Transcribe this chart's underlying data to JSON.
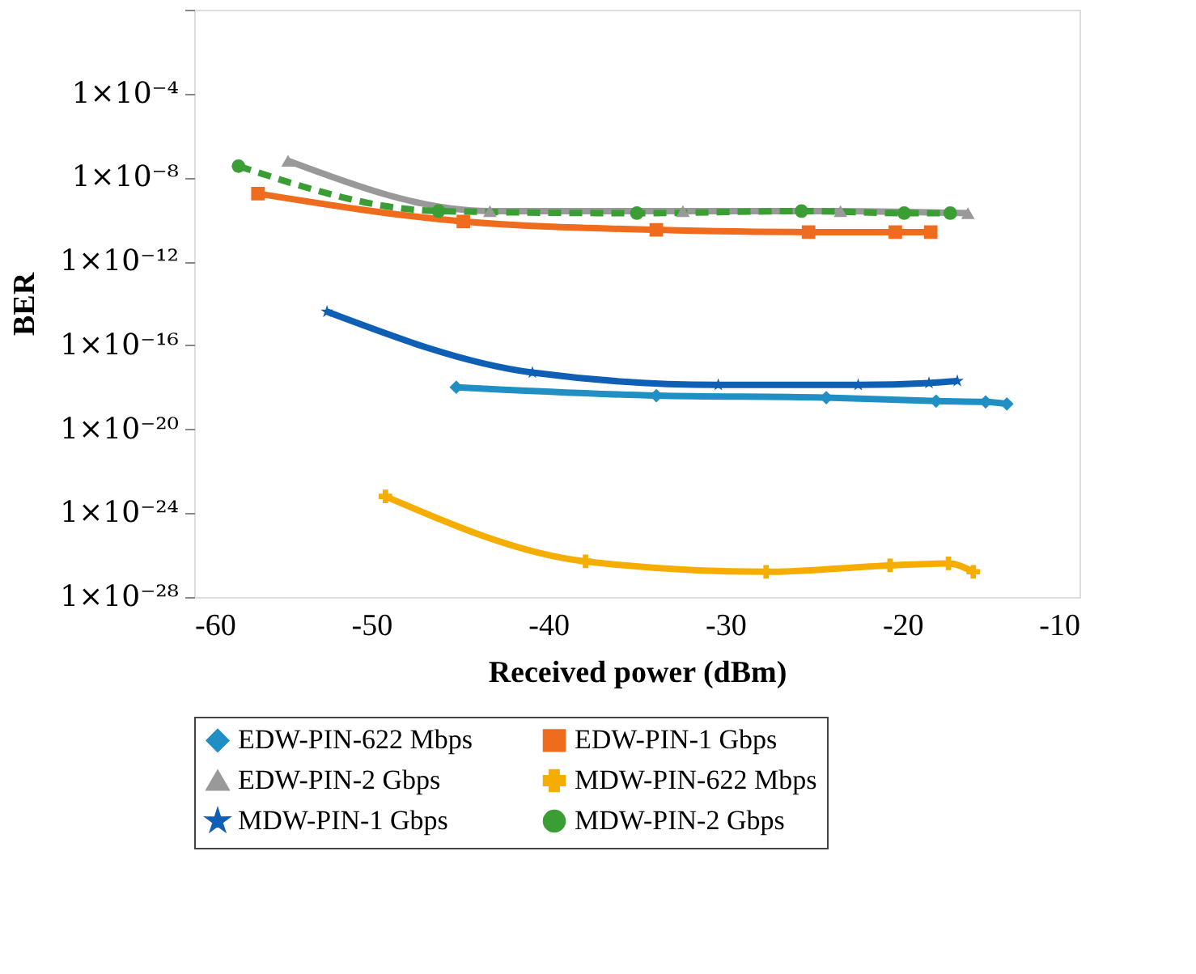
{
  "chart_data": {
    "type": "line",
    "xlabel": "Received power (dBm)",
    "ylabel": "BER",
    "log": "y",
    "grid": false,
    "legend": "bottom",
    "xlim": [
      -60,
      -10
    ],
    "xticks": [
      -60,
      -50,
      -40,
      -30,
      -20,
      -10
    ],
    "ylim": [
      1e-28,
      1
    ],
    "yticks": [
      {
        "value": 1e-28,
        "label": "1×10⁻²⁸"
      },
      {
        "value": 1e-24,
        "label": "1×10⁻²⁴"
      },
      {
        "value": 1e-20,
        "label": "1×10⁻²⁰"
      },
      {
        "value": 1e-16,
        "label": "1×10⁻¹⁶"
      },
      {
        "value": 1e-12,
        "label": "1×10⁻¹²"
      },
      {
        "value": 1e-08,
        "label": "1×10⁻⁸"
      },
      {
        "value": 0.0001,
        "label": "1×10⁻⁴"
      },
      {
        "value": 1,
        "label": null
      }
    ],
    "series": [
      {
        "name": "EDW-PIN-622 Mbps",
        "color": "#1f8fc4",
        "marker": "diamond",
        "line_style": "solid",
        "x": [
          -45.2,
          -33.9,
          -24.3,
          -18.1,
          -15.3,
          -14.1
        ],
        "values": [
          1e-18,
          4e-19,
          3.2e-19,
          2.2e-19,
          2e-19,
          1.6e-19
        ]
      },
      {
        "name": "EDW-PIN-1 Gbps",
        "color": "#ef6c1e",
        "marker": "square",
        "line_style": "solid",
        "x": [
          -56.4,
          -44.8,
          -33.9,
          -25.3,
          -20.4,
          -18.4
        ],
        "values": [
          1.7e-09,
          8e-11,
          3.2e-11,
          2.5e-11,
          2.5e-11,
          2.5e-11
        ]
      },
      {
        "name": "EDW-PIN-2 Gbps",
        "color": "#999999",
        "marker": "triangle",
        "line_style": "solid",
        "x": [
          -54.7,
          -43.3,
          -32.4,
          -23.5,
          -16.3
        ],
        "values": [
          6.3e-08,
          2.5e-10,
          2.5e-10,
          2.5e-10,
          2e-10
        ]
      },
      {
        "name": "MDW-PIN-622 Mbps",
        "color": "#f5ad00",
        "marker": "cross",
        "line_style": "solid",
        "x": [
          -49.2,
          -37.9,
          -27.7,
          -20.7,
          -17.4,
          -16.0
        ],
        "values": [
          6.3e-24,
          5e-27,
          1.6e-27,
          3.2e-27,
          4e-27,
          1.6e-27
        ]
      },
      {
        "name": "MDW-PIN-1 Gbps",
        "color": "#0f5fb5",
        "marker": "star",
        "line_style": "solid",
        "x": [
          -52.5,
          -40.9,
          -30.4,
          -22.5,
          -18.5,
          -16.9
        ],
        "values": [
          4e-15,
          5e-18,
          1.3e-18,
          1.3e-18,
          1.6e-18,
          2e-18
        ]
      },
      {
        "name": "MDW-PIN-2 Gbps",
        "color": "#3a9e35",
        "marker": "circle",
        "line_style": "dashed",
        "x": [
          -57.5,
          -46.2,
          -35.0,
          -25.7,
          -19.9,
          -17.3
        ],
        "values": [
          3.5e-08,
          2.5e-10,
          2e-10,
          2.5e-10,
          2e-10,
          2e-10
        ]
      }
    ]
  }
}
